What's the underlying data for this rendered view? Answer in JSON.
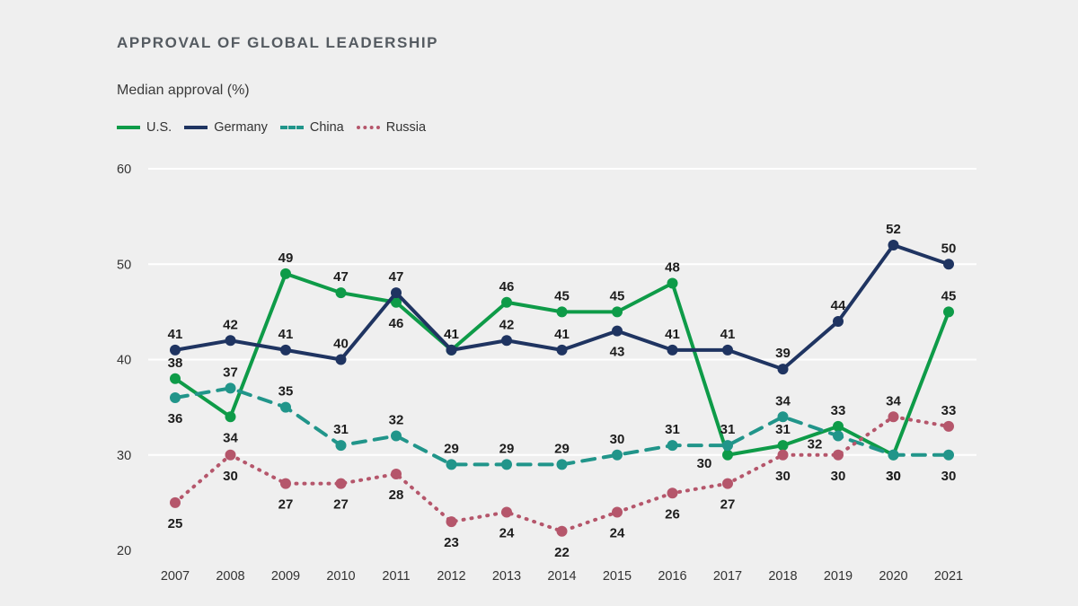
{
  "chart_data": {
    "type": "line",
    "title": "APPROVAL OF GLOBAL LEADERSHIP",
    "ylabel": "Median approval (%)",
    "xlabel": "",
    "x": [
      "2007",
      "2008",
      "2009",
      "2010",
      "2011",
      "2012",
      "2013",
      "2014",
      "2015",
      "2016",
      "2017",
      "2018",
      "2019",
      "2020",
      "2021"
    ],
    "ylim": [
      20,
      60
    ],
    "yticks": [
      "20",
      "30",
      "40",
      "50",
      "60"
    ],
    "grid": true,
    "legend_position": "top-left",
    "series": [
      {
        "name": "U.S.",
        "color": "#0e9b48",
        "style": "solid",
        "values": [
          38,
          34,
          49,
          47,
          46,
          41,
          46,
          45,
          45,
          48,
          30,
          31,
          33,
          30,
          45
        ],
        "labels": [
          "38",
          "34",
          "49",
          "47",
          "46",
          "41",
          "46",
          "45",
          "45",
          "48",
          "30",
          "31",
          "33",
          "30",
          "45"
        ]
      },
      {
        "name": "Germany",
        "color": "#1f3461",
        "style": "solid",
        "values": [
          41,
          42,
          41,
          40,
          47,
          41,
          42,
          41,
          43,
          41,
          41,
          39,
          44,
          52,
          50
        ],
        "labels": [
          "41",
          "42",
          "41",
          "40",
          "47",
          "41",
          "42",
          "41",
          "43",
          "41",
          "41",
          "39",
          "44",
          "52",
          "50"
        ]
      },
      {
        "name": "China",
        "color": "#21958a",
        "style": "dashed",
        "values": [
          36,
          37,
          35,
          31,
          32,
          29,
          29,
          29,
          30,
          31,
          31,
          34,
          32,
          30,
          30
        ],
        "labels": [
          "36",
          "37",
          "35",
          "31",
          "32",
          "29",
          "29",
          "29",
          "30",
          "31",
          "31",
          "34",
          "32",
          "30",
          "30"
        ]
      },
      {
        "name": "Russia",
        "color": "#b5566b",
        "style": "dotted",
        "values": [
          25,
          30,
          27,
          27,
          28,
          23,
          24,
          22,
          24,
          26,
          27,
          30,
          30,
          34,
          33
        ],
        "labels": [
          "25",
          "30",
          "27",
          "27",
          "28",
          "23",
          "24",
          "22",
          "24",
          "26",
          "27",
          "30",
          "30",
          "34",
          "33"
        ]
      }
    ]
  }
}
